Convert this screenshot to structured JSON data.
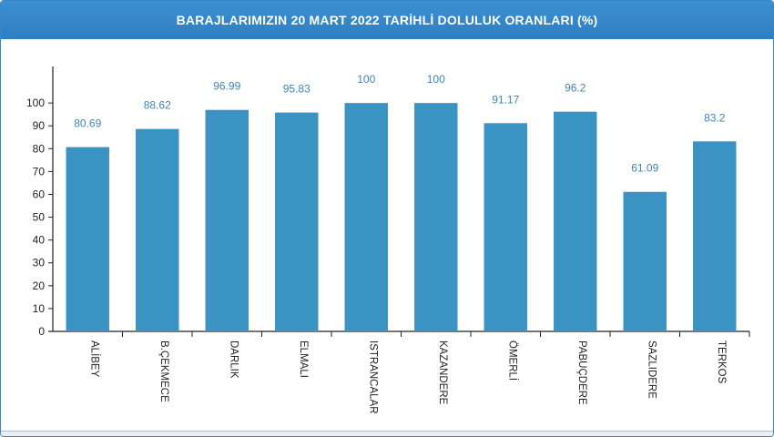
{
  "header": {
    "title": "BARAJLARIMIZIN 20 MART 2022 TARİHLİ DOLULUK ORANLARI (%)"
  },
  "colors": {
    "header": "#2f7fc1",
    "bar": "#3a93c3",
    "data_label": "#3f84b8",
    "axis": "#222222"
  },
  "chart_data": {
    "type": "bar",
    "title": "BARAJLARIMIZIN 20 MART 2022 TARİHLİ DOLULUK ORANLARI (%)",
    "categories": [
      "ALİBEY",
      "B.ÇEKMECE",
      "DARLIK",
      "ELMALI",
      "ISTRANCALAR",
      "KAZANDERE",
      "ÖMERLİ",
      "PABUÇDERE",
      "SAZLIDERE",
      "TERKOS"
    ],
    "values": [
      80.69,
      88.62,
      96.99,
      95.83,
      100,
      100,
      91.17,
      96.2,
      61.09,
      83.2
    ],
    "value_labels": [
      "80.69",
      "88.62",
      "96.99",
      "95.83",
      "100",
      "100",
      "91.17",
      "96.2",
      "61.09",
      "83.2"
    ],
    "yticks": [
      "0",
      "10",
      "20",
      "30",
      "40",
      "50",
      "60",
      "70",
      "80",
      "90",
      "100"
    ],
    "ylim": [
      0,
      116
    ],
    "xlabel": "",
    "ylabel": "",
    "grid": false,
    "legend": "none"
  }
}
